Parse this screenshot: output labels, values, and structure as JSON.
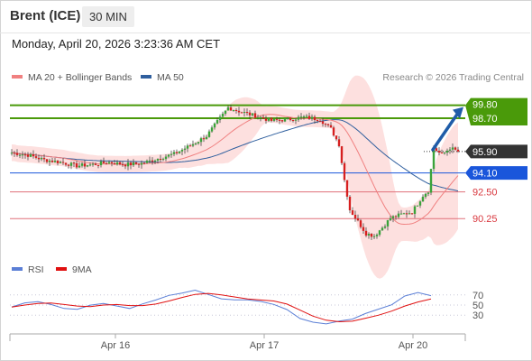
{
  "header": {
    "instrument": "Brent (ICE)",
    "timeframe": "30 MIN",
    "datetime": "Monday, April 20, 2026 3:23:36 AM CET"
  },
  "legend": {
    "items": [
      {
        "label": "MA 20 + Bollinger Bands",
        "color": "#f08080"
      },
      {
        "label": "MA 50",
        "color": "#2f5f9e"
      }
    ],
    "credit": "Research © 2026 Trading Central"
  },
  "rsi_legend": {
    "items": [
      {
        "label": "RSI",
        "color": "#5b7fd6"
      },
      {
        "label": "9MA",
        "color": "#e01010"
      }
    ]
  },
  "chart_data": [
    {
      "type": "candlestick",
      "title": "Brent (ICE)",
      "timeframe": "30 MIN",
      "x_ticks": [
        "Apr 16",
        "Apr 17",
        "Apr 20"
      ],
      "y_range": [
        87.0,
        100.3
      ],
      "levels": [
        {
          "label": "99.80",
          "value": 99.8,
          "kind": "resistance",
          "color": "#4a9a0a"
        },
        {
          "label": "98.70",
          "value": 98.7,
          "kind": "resistance",
          "color": "#4a9a0a"
        },
        {
          "label": "95.90",
          "value": 95.9,
          "kind": "last",
          "color": "#333333"
        },
        {
          "label": "94.10",
          "value": 94.1,
          "kind": "pivot",
          "color": "#1a56db"
        },
        {
          "label": "92.50",
          "value": 92.5,
          "kind": "support",
          "color": "#e0707a"
        },
        {
          "label": "90.25",
          "value": 90.25,
          "kind": "support",
          "color": "#e0707a"
        }
      ],
      "close_path": [
        [
          0,
          95.8
        ],
        [
          6,
          95.6
        ],
        [
          12,
          95.2
        ],
        [
          18,
          95.0
        ],
        [
          24,
          94.7
        ],
        [
          30,
          94.8
        ],
        [
          36,
          95.0
        ],
        [
          42,
          94.8
        ],
        [
          48,
          94.9
        ],
        [
          54,
          95.3
        ],
        [
          60,
          95.7
        ],
        [
          66,
          96.4
        ],
        [
          72,
          97.2
        ],
        [
          76,
          98.4
        ],
        [
          80,
          99.6
        ],
        [
          84,
          99.3
        ],
        [
          90,
          98.9
        ],
        [
          96,
          98.5
        ],
        [
          102,
          98.6
        ],
        [
          108,
          98.8
        ],
        [
          114,
          98.6
        ],
        [
          118,
          97.8
        ],
        [
          121,
          96.5
        ],
        [
          123,
          93.5
        ],
        [
          125,
          91.0
        ],
        [
          128,
          90.0
        ],
        [
          131,
          89.0
        ],
        [
          134,
          88.8
        ],
        [
          137,
          89.5
        ],
        [
          140,
          90.3
        ],
        [
          144,
          90.6
        ],
        [
          148,
          90.8
        ],
        [
          150,
          91.5
        ],
        [
          152,
          92.2
        ],
        [
          154,
          92.6
        ],
        [
          156,
          96.2
        ],
        [
          159,
          95.6
        ],
        [
          162,
          96.2
        ],
        [
          165,
          95.9
        ]
      ],
      "projection": {
        "from": 95.9,
        "to": 99.8
      }
    },
    {
      "type": "line",
      "title": "RSI",
      "y_ticks": [
        70,
        50,
        30
      ],
      "y_range": [
        0,
        100
      ],
      "series": [
        {
          "name": "RSI",
          "values": [
            45,
            55,
            57,
            52,
            44,
            40,
            48,
            55,
            49,
            44,
            51,
            58,
            68,
            75,
            80,
            70,
            62,
            59,
            60,
            58,
            50,
            40,
            22,
            15,
            12,
            18,
            24,
            32,
            40,
            52,
            68,
            75,
            69
          ]
        },
        {
          "name": "9MA",
          "values": [
            46,
            50,
            53,
            54,
            51,
            48,
            47,
            50,
            51,
            49,
            49,
            52,
            58,
            65,
            71,
            73,
            70,
            66,
            62,
            60,
            58,
            52,
            40,
            28,
            20,
            17,
            18,
            24,
            30,
            38,
            48,
            56,
            62
          ]
        }
      ]
    }
  ]
}
